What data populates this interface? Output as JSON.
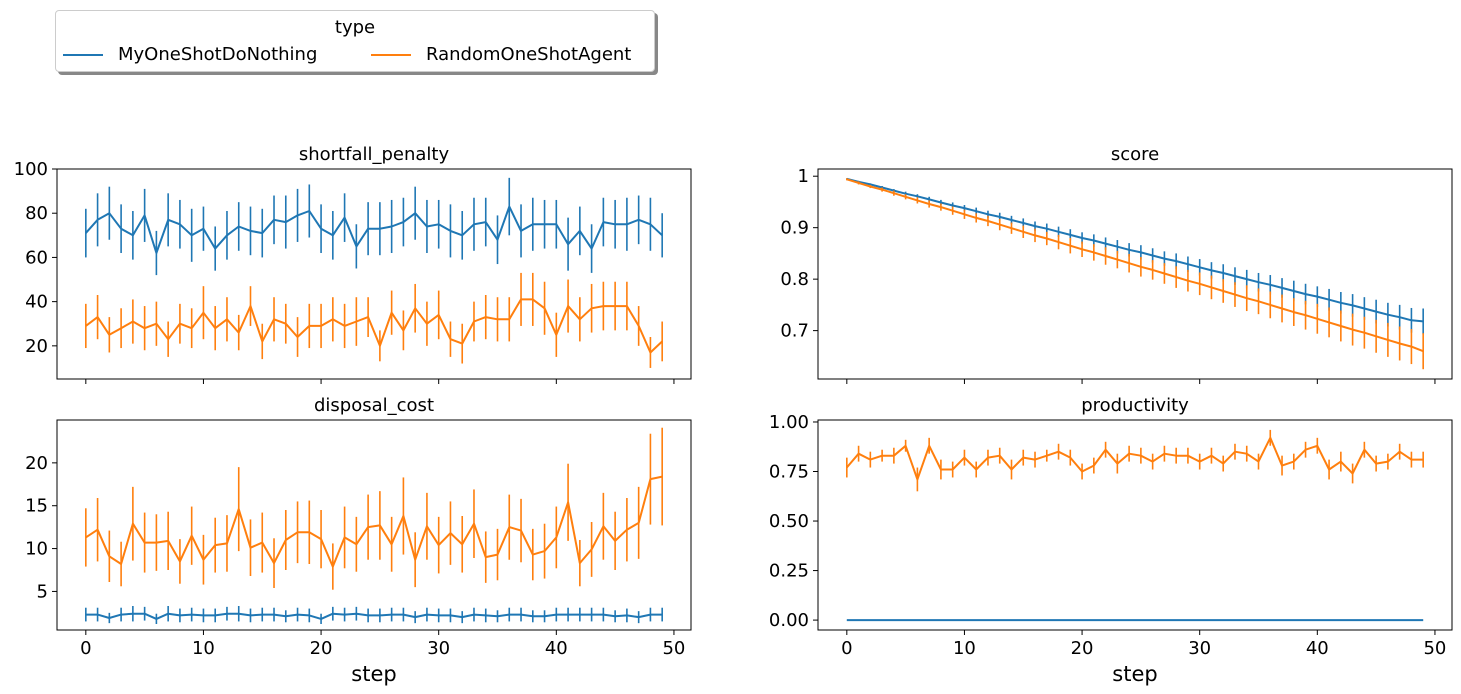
{
  "legend": {
    "title": "type",
    "entries": [
      {
        "label": "MyOneShotDoNothing",
        "color": "#1f77b4"
      },
      {
        "label": "RandomOneShotAgent",
        "color": "#ff7f0e"
      }
    ],
    "placement": "top-left"
  },
  "chart_data": [
    {
      "type": "line",
      "title": "shortfall_penalty",
      "xlabel": "",
      "ylabel": "",
      "xlim": [
        -2.45,
        51.45
      ],
      "ylim": [
        5,
        100
      ],
      "xticks": [
        0,
        10,
        20,
        30,
        40,
        50
      ],
      "yticks": [
        20,
        40,
        60,
        80,
        100
      ],
      "show_xticklabels": false,
      "grid": false,
      "error_bars": true,
      "x": [
        0,
        1,
        2,
        3,
        4,
        5,
        6,
        7,
        8,
        9,
        10,
        11,
        12,
        13,
        14,
        15,
        16,
        17,
        18,
        19,
        20,
        21,
        22,
        23,
        24,
        25,
        26,
        27,
        28,
        29,
        30,
        31,
        32,
        33,
        34,
        35,
        36,
        37,
        38,
        39,
        40,
        41,
        42,
        43,
        44,
        45,
        46,
        47,
        48,
        49
      ],
      "series": [
        {
          "name": "MyOneShotDoNothing",
          "color": "#1f77b4",
          "values": [
            71,
            77,
            80,
            73,
            70,
            79,
            62,
            77,
            75,
            70,
            73,
            64,
            70,
            74,
            72,
            71,
            77,
            76,
            79,
            81,
            73,
            70,
            78,
            65,
            73,
            73,
            74,
            76,
            80,
            74,
            75,
            72,
            70,
            75,
            76,
            68,
            83,
            72,
            75,
            75,
            75,
            66,
            72,
            64,
            76,
            75,
            75,
            77,
            75,
            70
          ],
          "err": [
            11,
            12,
            12,
            11,
            11,
            12,
            10,
            12,
            11,
            12,
            10,
            10,
            11,
            11,
            11,
            11,
            11,
            12,
            12,
            12,
            11,
            11,
            11,
            10,
            12,
            12,
            12,
            11,
            12,
            12,
            11,
            12,
            11,
            12,
            11,
            11,
            13,
            12,
            12,
            11,
            11,
            12,
            11,
            11,
            11,
            11,
            12,
            11,
            12,
            10
          ]
        },
        {
          "name": "RandomOneShotAgent",
          "color": "#ff7f0e",
          "values": [
            29,
            33,
            25,
            28,
            31,
            28,
            30,
            23,
            30,
            28,
            35,
            28,
            32,
            26,
            38,
            22,
            32,
            30,
            24,
            29,
            29,
            32,
            29,
            31,
            33,
            20,
            35,
            27,
            37,
            30,
            34,
            23,
            21,
            31,
            33,
            32,
            32,
            41,
            41,
            37,
            25,
            38,
            32,
            37,
            38,
            38,
            38,
            29,
            17,
            22
          ],
          "err": [
            10,
            10,
            8,
            9,
            10,
            10,
            10,
            8,
            9,
            9,
            12,
            10,
            10,
            8,
            9,
            8,
            10,
            9,
            9,
            10,
            10,
            10,
            10,
            11,
            9,
            7,
            10,
            9,
            11,
            10,
            11,
            8,
            9,
            9,
            10,
            10,
            10,
            12,
            12,
            12,
            10,
            12,
            10,
            11,
            11,
            11,
            11,
            9,
            7,
            9
          ]
        }
      ]
    },
    {
      "type": "line",
      "title": "score",
      "xlabel": "",
      "ylabel": "",
      "xlim": [
        -2.45,
        51.45
      ],
      "ylim": [
        0.606,
        1.014
      ],
      "xticks": [
        0,
        10,
        20,
        30,
        40,
        50
      ],
      "yticks": [
        0.7,
        0.8,
        0.9,
        1.0
      ],
      "show_xticklabels": false,
      "grid": false,
      "error_bars": true,
      "x": [
        0,
        1,
        2,
        3,
        4,
        5,
        6,
        7,
        8,
        9,
        10,
        11,
        12,
        13,
        14,
        15,
        16,
        17,
        18,
        19,
        20,
        21,
        22,
        23,
        24,
        25,
        26,
        27,
        28,
        29,
        30,
        31,
        32,
        33,
        34,
        35,
        36,
        37,
        38,
        39,
        40,
        41,
        42,
        43,
        44,
        45,
        46,
        47,
        48,
        49
      ],
      "series": [
        {
          "name": "MyOneShotDoNothing",
          "color": "#1f77b4",
          "values": [
            0.995,
            0.989,
            0.984,
            0.978,
            0.972,
            0.966,
            0.961,
            0.955,
            0.949,
            0.943,
            0.938,
            0.932,
            0.926,
            0.921,
            0.915,
            0.909,
            0.903,
            0.898,
            0.892,
            0.886,
            0.88,
            0.875,
            0.869,
            0.863,
            0.857,
            0.852,
            0.846,
            0.84,
            0.835,
            0.829,
            0.823,
            0.817,
            0.812,
            0.806,
            0.8,
            0.794,
            0.789,
            0.783,
            0.777,
            0.771,
            0.766,
            0.76,
            0.754,
            0.749,
            0.743,
            0.737,
            0.731,
            0.726,
            0.72,
            0.718
          ],
          "err": [
            0.001,
            0.002,
            0.002,
            0.003,
            0.003,
            0.004,
            0.004,
            0.005,
            0.005,
            0.006,
            0.006,
            0.007,
            0.007,
            0.008,
            0.008,
            0.009,
            0.009,
            0.01,
            0.01,
            0.011,
            0.011,
            0.012,
            0.012,
            0.013,
            0.013,
            0.014,
            0.014,
            0.014,
            0.015,
            0.015,
            0.016,
            0.016,
            0.017,
            0.017,
            0.018,
            0.018,
            0.019,
            0.019,
            0.02,
            0.02,
            0.02,
            0.021,
            0.021,
            0.022,
            0.022,
            0.023,
            0.023,
            0.024,
            0.024,
            0.025
          ]
        },
        {
          "name": "RandomOneShotAgent",
          "color": "#ff7f0e",
          "values": [
            0.994,
            0.987,
            0.98,
            0.974,
            0.967,
            0.96,
            0.953,
            0.946,
            0.94,
            0.933,
            0.926,
            0.919,
            0.913,
            0.906,
            0.899,
            0.892,
            0.885,
            0.879,
            0.872,
            0.865,
            0.858,
            0.852,
            0.845,
            0.838,
            0.831,
            0.824,
            0.818,
            0.811,
            0.804,
            0.797,
            0.791,
            0.784,
            0.777,
            0.77,
            0.763,
            0.757,
            0.75,
            0.743,
            0.736,
            0.73,
            0.723,
            0.716,
            0.709,
            0.702,
            0.696,
            0.689,
            0.682,
            0.675,
            0.669,
            0.66
          ],
          "err": [
            0.002,
            0.003,
            0.003,
            0.004,
            0.005,
            0.005,
            0.006,
            0.007,
            0.007,
            0.008,
            0.009,
            0.009,
            0.01,
            0.011,
            0.011,
            0.012,
            0.013,
            0.013,
            0.014,
            0.015,
            0.015,
            0.016,
            0.017,
            0.017,
            0.018,
            0.019,
            0.019,
            0.02,
            0.021,
            0.021,
            0.022,
            0.023,
            0.023,
            0.024,
            0.025,
            0.025,
            0.026,
            0.027,
            0.027,
            0.028,
            0.029,
            0.029,
            0.03,
            0.031,
            0.031,
            0.032,
            0.033,
            0.033,
            0.034,
            0.035
          ]
        }
      ]
    },
    {
      "type": "line",
      "title": "disposal_cost",
      "xlabel": "step",
      "ylabel": "",
      "xlim": [
        -2.45,
        51.45
      ],
      "ylim": [
        0.5,
        25
      ],
      "xticks": [
        0,
        10,
        20,
        30,
        40,
        50
      ],
      "yticks": [
        5,
        10,
        15,
        20
      ],
      "show_xticklabels": true,
      "grid": false,
      "error_bars": true,
      "x": [
        0,
        1,
        2,
        3,
        4,
        5,
        6,
        7,
        8,
        9,
        10,
        11,
        12,
        13,
        14,
        15,
        16,
        17,
        18,
        19,
        20,
        21,
        22,
        23,
        24,
        25,
        26,
        27,
        28,
        29,
        30,
        31,
        32,
        33,
        34,
        35,
        36,
        37,
        38,
        39,
        40,
        41,
        42,
        43,
        44,
        45,
        46,
        47,
        48,
        49
      ],
      "series": [
        {
          "name": "MyOneShotDoNothing",
          "color": "#1f77b4",
          "values": [
            2.3,
            2.3,
            1.9,
            2.3,
            2.4,
            2.4,
            1.8,
            2.4,
            2.2,
            2.3,
            2.2,
            2.2,
            2.4,
            2.4,
            2.2,
            2.3,
            2.3,
            2.1,
            2.3,
            2.2,
            1.8,
            2.4,
            2.3,
            2.4,
            2.2,
            2.2,
            2.3,
            2.3,
            2.0,
            2.3,
            2.2,
            2.2,
            2.0,
            2.3,
            2.2,
            2.1,
            2.3,
            2.3,
            2.1,
            2.1,
            2.3,
            2.3,
            2.3,
            2.3,
            2.3,
            2.1,
            2.2,
            2.0,
            2.3,
            2.3
          ],
          "err": [
            0.8,
            0.8,
            0.6,
            0.8,
            0.9,
            0.8,
            0.6,
            0.9,
            0.8,
            0.8,
            0.8,
            0.8,
            0.8,
            0.9,
            0.8,
            0.8,
            0.8,
            0.7,
            0.8,
            0.8,
            0.6,
            0.8,
            0.8,
            0.8,
            0.8,
            0.8,
            0.8,
            0.8,
            0.7,
            0.8,
            0.8,
            0.8,
            0.7,
            0.8,
            0.8,
            0.7,
            0.8,
            0.8,
            0.7,
            0.7,
            0.8,
            0.8,
            0.8,
            0.8,
            0.8,
            0.7,
            0.8,
            0.7,
            0.8,
            0.8
          ]
        },
        {
          "name": "RandomOneShotAgent",
          "color": "#ff7f0e",
          "values": [
            11.3,
            12.2,
            9.1,
            8.2,
            12.9,
            10.7,
            10.7,
            10.9,
            8.5,
            11.5,
            8.7,
            10.4,
            10.6,
            14.6,
            10.1,
            10.7,
            8.3,
            11.0,
            11.9,
            11.9,
            11.1,
            7.9,
            11.3,
            10.5,
            12.5,
            12.7,
            10.5,
            13.8,
            8.7,
            12.6,
            10.4,
            11.8,
            10.5,
            12.9,
            9.0,
            9.3,
            12.5,
            12.1,
            9.3,
            9.7,
            11.3,
            15.4,
            8.3,
            9.9,
            12.6,
            10.9,
            12.2,
            13.0,
            18.1,
            18.4
          ],
          "err": [
            3.4,
            3.7,
            3.0,
            2.6,
            4.3,
            3.5,
            3.3,
            3.4,
            2.6,
            3.4,
            2.9,
            3.2,
            3.3,
            4.9,
            3.3,
            3.5,
            2.9,
            3.5,
            3.6,
            3.7,
            3.4,
            2.7,
            3.6,
            3.2,
            3.8,
            4.0,
            3.2,
            4.5,
            3.2,
            3.9,
            3.3,
            3.7,
            3.3,
            4.0,
            3.0,
            3.0,
            3.8,
            3.7,
            3.0,
            3.2,
            3.6,
            4.5,
            2.7,
            3.2,
            3.9,
            3.4,
            3.7,
            4.2,
            5.3,
            5.7
          ]
        }
      ]
    },
    {
      "type": "line",
      "title": "productivity",
      "xlabel": "step",
      "ylabel": "",
      "xlim": [
        -2.45,
        51.45
      ],
      "ylim": [
        -0.05,
        1.01
      ],
      "xticks": [
        0,
        10,
        20,
        30,
        40,
        50
      ],
      "yticks": [
        0.0,
        0.25,
        0.5,
        0.75,
        1.0
      ],
      "ytick_labels": [
        "0.00",
        "0.25",
        "0.50",
        "0.75",
        "1.00"
      ],
      "show_xticklabels": true,
      "grid": false,
      "error_bars": true,
      "x": [
        0,
        1,
        2,
        3,
        4,
        5,
        6,
        7,
        8,
        9,
        10,
        11,
        12,
        13,
        14,
        15,
        16,
        17,
        18,
        19,
        20,
        21,
        22,
        23,
        24,
        25,
        26,
        27,
        28,
        29,
        30,
        31,
        32,
        33,
        34,
        35,
        36,
        37,
        38,
        39,
        40,
        41,
        42,
        43,
        44,
        45,
        46,
        47,
        48,
        49
      ],
      "series": [
        {
          "name": "MyOneShotDoNothing",
          "color": "#1f77b4",
          "values": [
            0,
            0,
            0,
            0,
            0,
            0,
            0,
            0,
            0,
            0,
            0,
            0,
            0,
            0,
            0,
            0,
            0,
            0,
            0,
            0,
            0,
            0,
            0,
            0,
            0,
            0,
            0,
            0,
            0,
            0,
            0,
            0,
            0,
            0,
            0,
            0,
            0,
            0,
            0,
            0,
            0,
            0,
            0,
            0,
            0,
            0,
            0,
            0,
            0,
            0
          ],
          "err": [
            0,
            0,
            0,
            0,
            0,
            0,
            0,
            0,
            0,
            0,
            0,
            0,
            0,
            0,
            0,
            0,
            0,
            0,
            0,
            0,
            0,
            0,
            0,
            0,
            0,
            0,
            0,
            0,
            0,
            0,
            0,
            0,
            0,
            0,
            0,
            0,
            0,
            0,
            0,
            0,
            0,
            0,
            0,
            0,
            0,
            0,
            0,
            0,
            0,
            0
          ]
        },
        {
          "name": "RandomOneShotAgent",
          "color": "#ff7f0e",
          "values": [
            0.77,
            0.84,
            0.81,
            0.83,
            0.83,
            0.88,
            0.71,
            0.88,
            0.76,
            0.76,
            0.82,
            0.76,
            0.82,
            0.83,
            0.76,
            0.82,
            0.81,
            0.83,
            0.85,
            0.82,
            0.75,
            0.78,
            0.86,
            0.79,
            0.84,
            0.83,
            0.8,
            0.84,
            0.83,
            0.83,
            0.8,
            0.83,
            0.79,
            0.85,
            0.84,
            0.8,
            0.92,
            0.78,
            0.8,
            0.86,
            0.88,
            0.76,
            0.8,
            0.74,
            0.86,
            0.79,
            0.8,
            0.85,
            0.81,
            0.81
          ],
          "err": [
            0.05,
            0.04,
            0.04,
            0.03,
            0.04,
            0.03,
            0.06,
            0.04,
            0.05,
            0.04,
            0.04,
            0.04,
            0.04,
            0.04,
            0.05,
            0.04,
            0.04,
            0.03,
            0.04,
            0.04,
            0.04,
            0.04,
            0.04,
            0.05,
            0.04,
            0.04,
            0.04,
            0.04,
            0.04,
            0.04,
            0.04,
            0.04,
            0.04,
            0.04,
            0.04,
            0.04,
            0.04,
            0.05,
            0.04,
            0.04,
            0.04,
            0.05,
            0.05,
            0.05,
            0.04,
            0.04,
            0.04,
            0.04,
            0.04,
            0.04
          ]
        }
      ]
    }
  ]
}
